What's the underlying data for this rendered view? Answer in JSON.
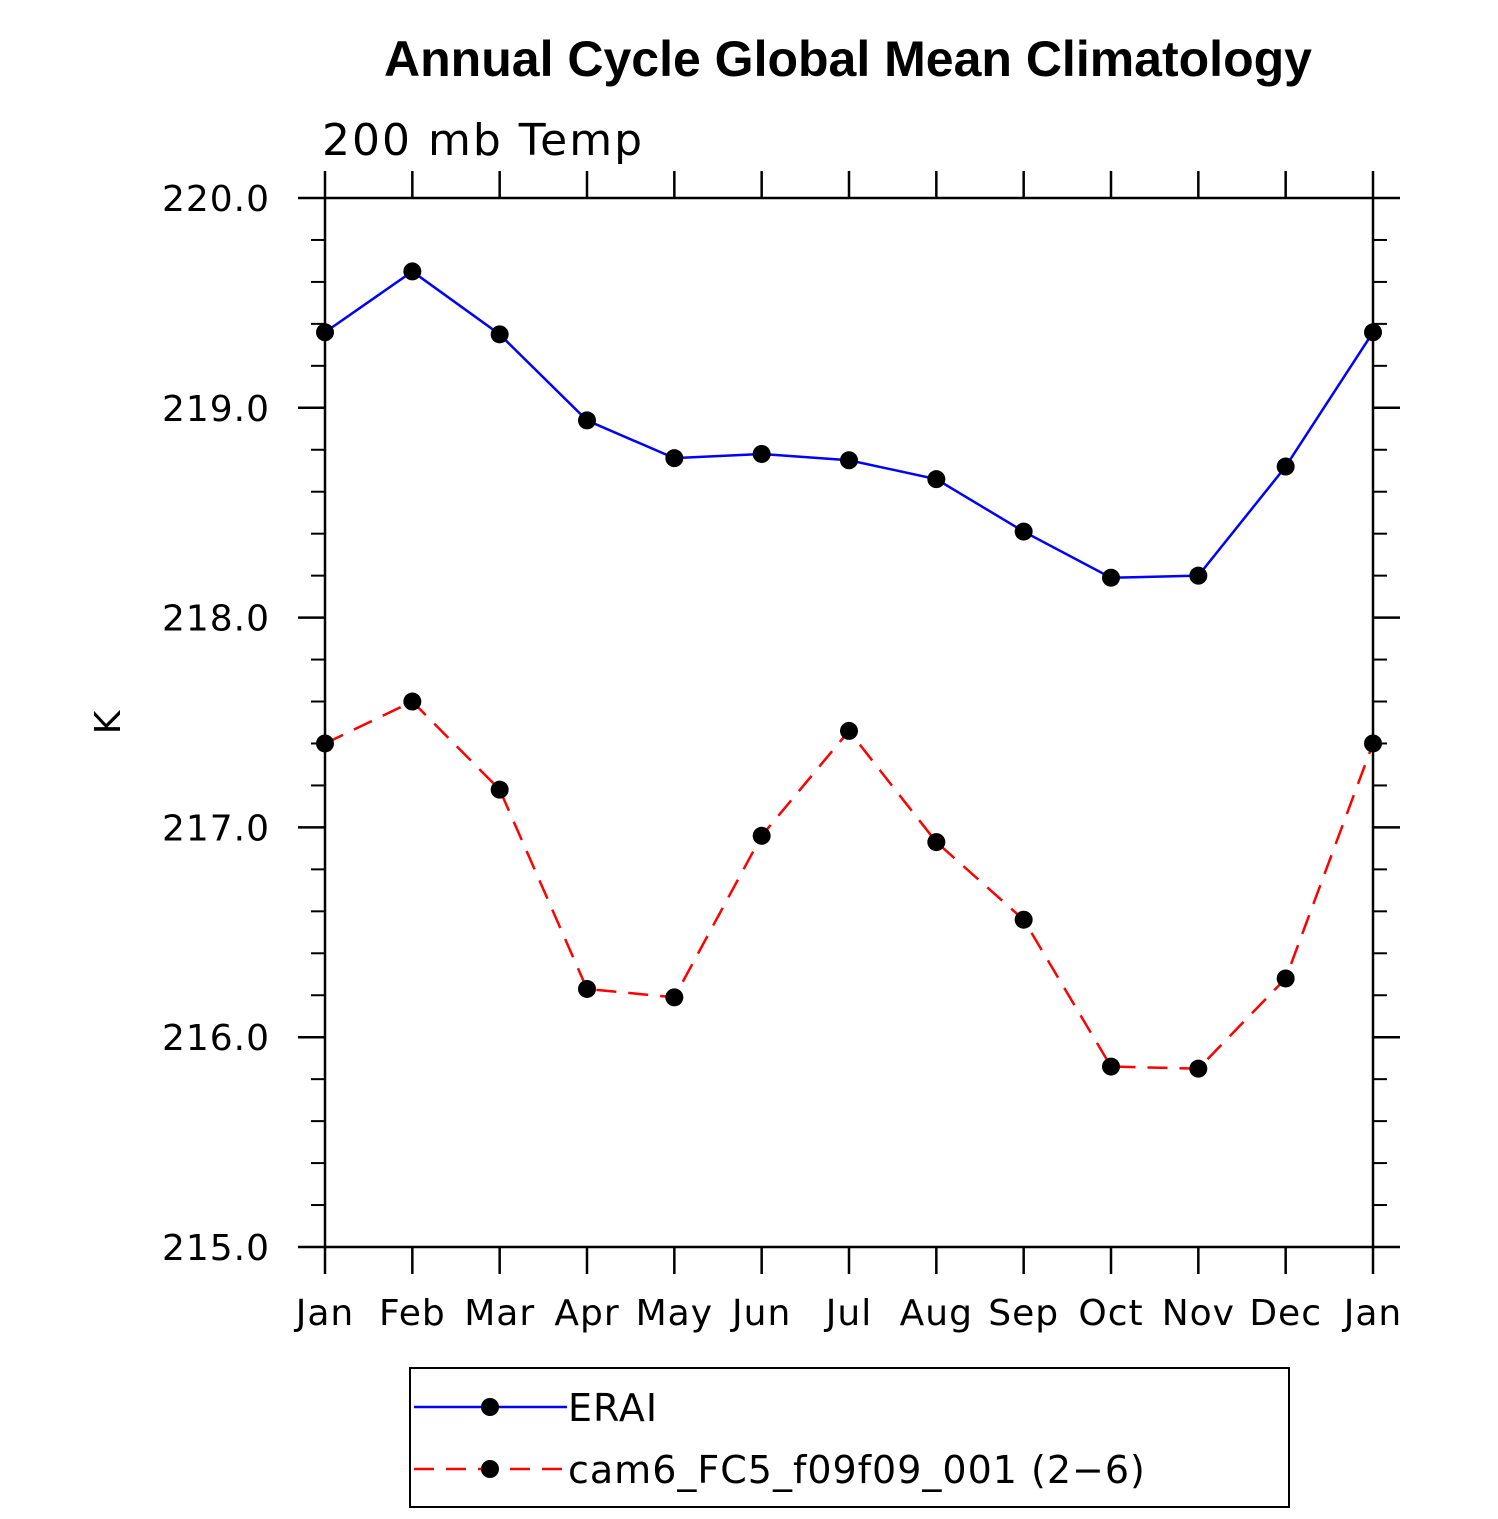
{
  "chart_data": {
    "type": "line",
    "title": "Annual Cycle Global Mean Climatology",
    "subtitle": "200 mb Temp",
    "ylabel": "K",
    "xlabel": "",
    "categories": [
      "Jan",
      "Feb",
      "Mar",
      "Apr",
      "May",
      "Jun",
      "Jul",
      "Aug",
      "Sep",
      "Oct",
      "Nov",
      "Dec",
      "Jan"
    ],
    "ylim": [
      215.0,
      220.0
    ],
    "yticks": [
      215.0,
      216.0,
      217.0,
      218.0,
      219.0,
      220.0
    ],
    "ytick_labels": [
      "215.0",
      "216.0",
      "217.0",
      "218.0",
      "219.0",
      "220.0"
    ],
    "grid": false,
    "legend_position": "bottom",
    "series": [
      {
        "name": "ERAI",
        "color": "#0000ff",
        "line_style": "solid",
        "marker": "circle",
        "values": [
          219.36,
          219.65,
          219.35,
          218.94,
          218.76,
          218.78,
          218.75,
          218.66,
          218.41,
          218.19,
          218.2,
          218.72,
          219.36
        ]
      },
      {
        "name": "cam6_FC5_f09f09_001 (2−6)",
        "color": "#ff0000",
        "line_style": "dashed",
        "marker": "circle",
        "values": [
          217.4,
          217.6,
          217.18,
          216.23,
          216.19,
          216.96,
          217.46,
          216.93,
          216.56,
          215.86,
          215.85,
          216.28,
          217.4
        ]
      }
    ]
  }
}
